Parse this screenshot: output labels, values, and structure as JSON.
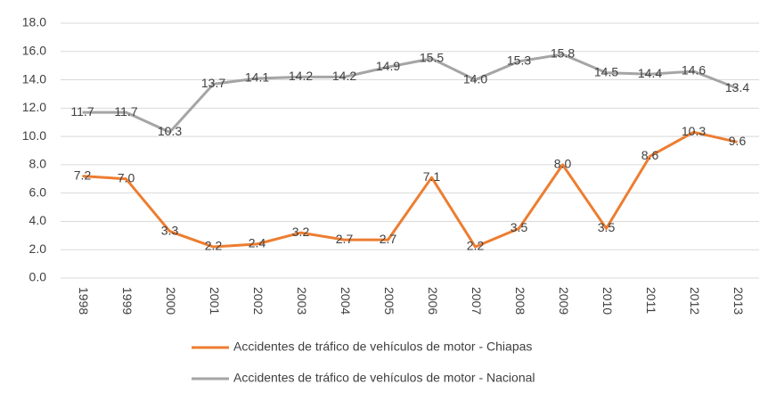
{
  "chart_data": {
    "type": "line",
    "categories": [
      "1998",
      "1999",
      "2000",
      "2001",
      "2002",
      "2003",
      "2004",
      "2005",
      "2006",
      "2007",
      "2008",
      "2009",
      "2010",
      "2011",
      "2012",
      "2013"
    ],
    "series": [
      {
        "name": "Accidentes de tráfico de vehículos de motor - Chiapas",
        "color": "#ed7d31",
        "values": [
          7.2,
          7.0,
          3.3,
          2.2,
          2.4,
          3.2,
          2.7,
          2.7,
          7.1,
          2.2,
          3.5,
          8.0,
          3.5,
          8.6,
          10.3,
          9.6
        ],
        "value_labels": [
          "7.2",
          "7.0",
          "3.3",
          "2.2",
          "2.4",
          "3.2",
          "2.7",
          "2.7",
          "7.1",
          "2.2",
          "3.5",
          "8.0",
          "3.5",
          "8.6",
          "10.3",
          "9.6"
        ]
      },
      {
        "name": "Accidentes de tráfico de vehículos de motor - Nacional",
        "color": "#a5a5a5",
        "values": [
          11.7,
          11.7,
          10.3,
          13.7,
          14.1,
          14.2,
          14.2,
          14.9,
          15.5,
          14.0,
          15.3,
          15.8,
          14.5,
          14.4,
          14.6,
          13.4
        ],
        "value_labels": [
          "11.7",
          "11.7",
          "10.3",
          "13.7",
          "14.1",
          "14.2",
          "14.2",
          "14.9",
          "15.5",
          "14.0",
          "15.3",
          "15.8",
          "14.5",
          "14.4",
          "14.6",
          "13.4"
        ]
      }
    ],
    "ylim": [
      0,
      18
    ],
    "yticks": [
      {
        "value": 0,
        "label": "0.0"
      },
      {
        "value": 2,
        "label": "2.0"
      },
      {
        "value": 4,
        "label": "4.0"
      },
      {
        "value": 6,
        "label": "6.0"
      },
      {
        "value": 8,
        "label": "8.0"
      },
      {
        "value": 10,
        "label": "10.0"
      },
      {
        "value": 12,
        "label": "12.0"
      },
      {
        "value": 14,
        "label": "14.0"
      },
      {
        "value": 16,
        "label": "16.0"
      },
      {
        "value": 18,
        "label": "18.0"
      }
    ],
    "grid": true,
    "legend": "bottom"
  }
}
